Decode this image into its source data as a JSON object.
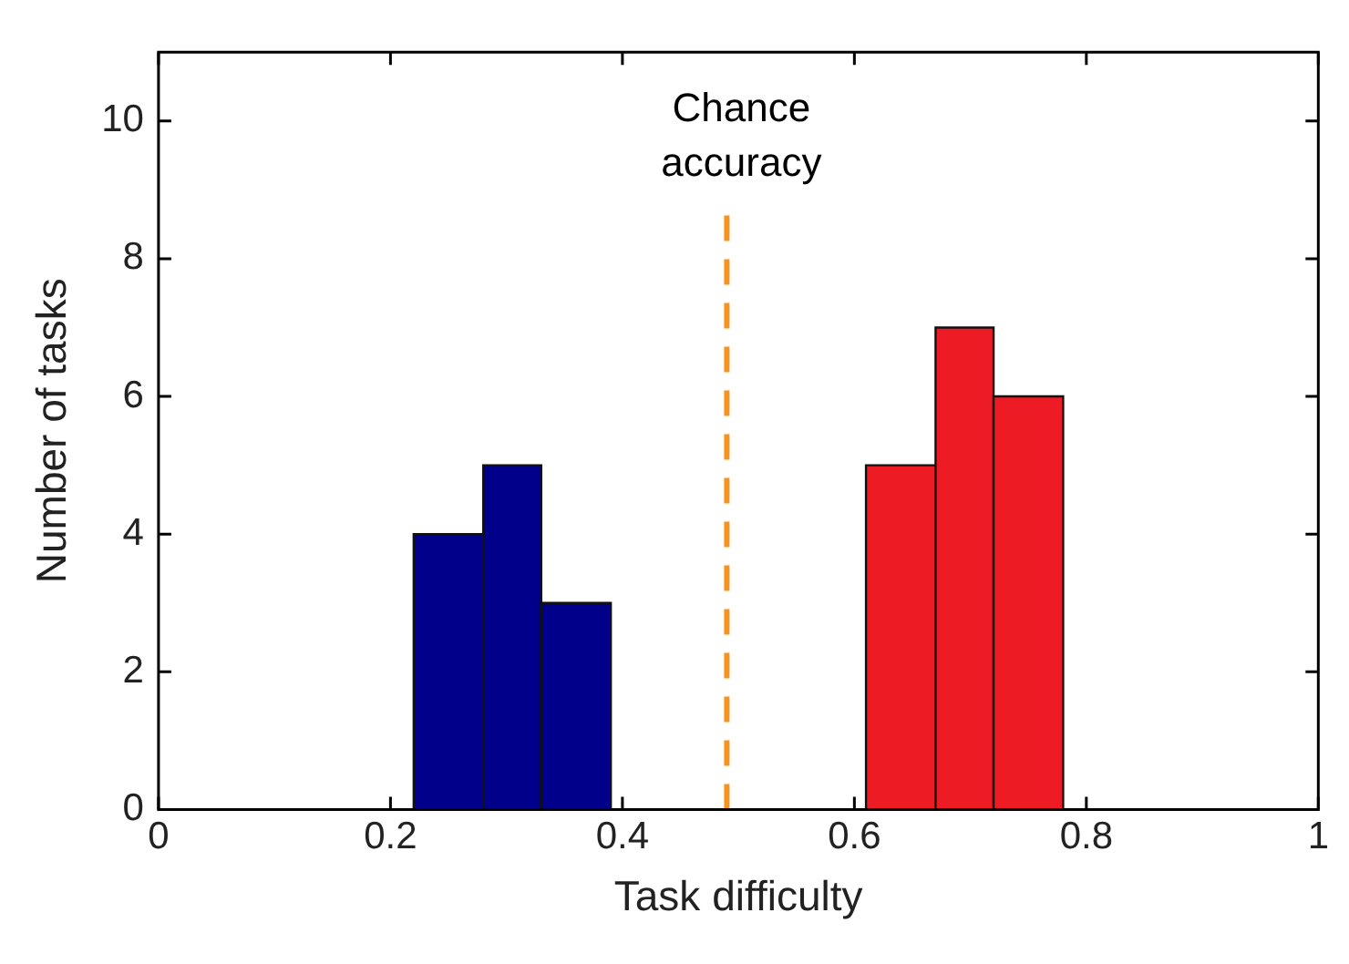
{
  "chart_data": {
    "type": "histogram",
    "xlabel": "Task difficulty",
    "ylabel": "Number of tasks",
    "bins": [
      0.22,
      0.28,
      0.33,
      0.39,
      0.61,
      0.67,
      0.72,
      0.78
    ],
    "values": [
      4,
      5,
      3,
      0,
      5,
      7,
      6
    ],
    "colors": [
      "#00008b",
      "#00008b",
      "#00008b",
      null,
      "#ed1c24",
      "#ed1c24",
      "#ed1c24"
    ],
    "xlim": [
      0,
      1
    ],
    "xticks": [
      0,
      0.2,
      0.4,
      0.6,
      0.8,
      1
    ],
    "ylim": [
      0,
      11
    ],
    "yticks": [
      0,
      2,
      4,
      6,
      8,
      10
    ],
    "grid": false,
    "ref_lines": [
      {
        "axis": "x",
        "value": 0.49,
        "label": "Chance accuracy",
        "color": "#f7941d",
        "line_style": "dashed"
      }
    ]
  }
}
